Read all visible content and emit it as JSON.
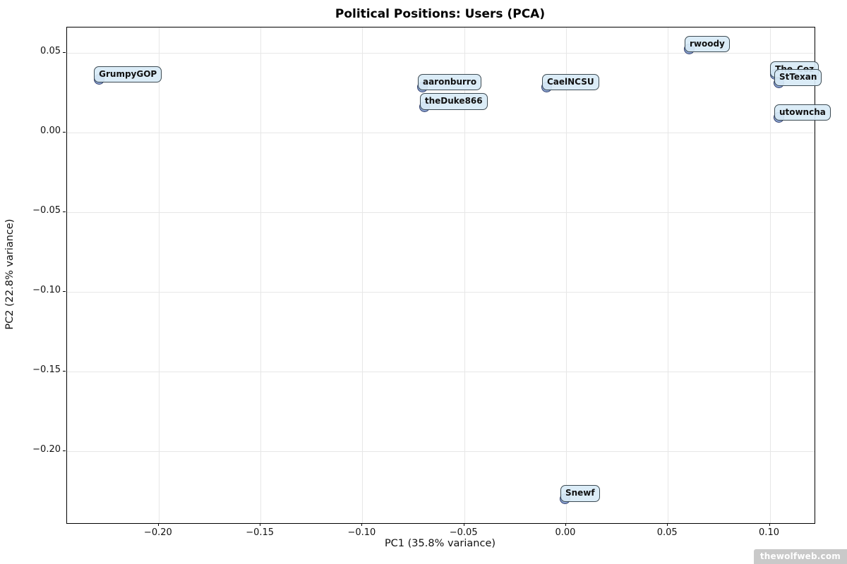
{
  "watermark": "thewolfweb.com",
  "colors": {
    "marker_fill": "rgba(113,143,201,0.8)",
    "marker_edge": "#2f3e6b",
    "label_box_fill": "rgba(216,234,246,0.92)",
    "label_box_border": "#3c4a52",
    "grid": "#e7e7e7",
    "watermark_bg": "#c9c9c9",
    "watermark_text": "#ffffff"
  },
  "chart_data": {
    "type": "scatter",
    "title": "Political Positions: Users (PCA)",
    "xlabel": "PC1 (35.8% variance)",
    "ylabel": "PC2 (22.8% variance)",
    "xlim": [
      -0.245,
      0.122
    ],
    "ylim": [
      -0.245,
      0.066
    ],
    "xticks": [
      -0.2,
      -0.15,
      -0.1,
      -0.05,
      0.0,
      0.05,
      0.1
    ],
    "yticks": [
      0.05,
      0.0,
      -0.05,
      -0.1,
      -0.15,
      -0.2
    ],
    "grid": true,
    "legend": "none",
    "points": [
      {
        "label": "GrumpyGOP",
        "x": -0.229,
        "y": 0.033
      },
      {
        "label": "aaronburro",
        "x": -0.07,
        "y": 0.028
      },
      {
        "label": "theDuke866",
        "x": -0.069,
        "y": 0.016
      },
      {
        "label": "CaelNCSU",
        "x": -0.009,
        "y": 0.028
      },
      {
        "label": "rwoody",
        "x": 0.061,
        "y": 0.052
      },
      {
        "label": "The_Coz",
        "x": 0.103,
        "y": 0.036
      },
      {
        "label": "StTexan",
        "x": 0.105,
        "y": 0.031
      },
      {
        "label": "utowncha",
        "x": 0.105,
        "y": 0.009
      },
      {
        "label": "Snewf",
        "x": 0.0,
        "y": -0.23
      }
    ]
  }
}
